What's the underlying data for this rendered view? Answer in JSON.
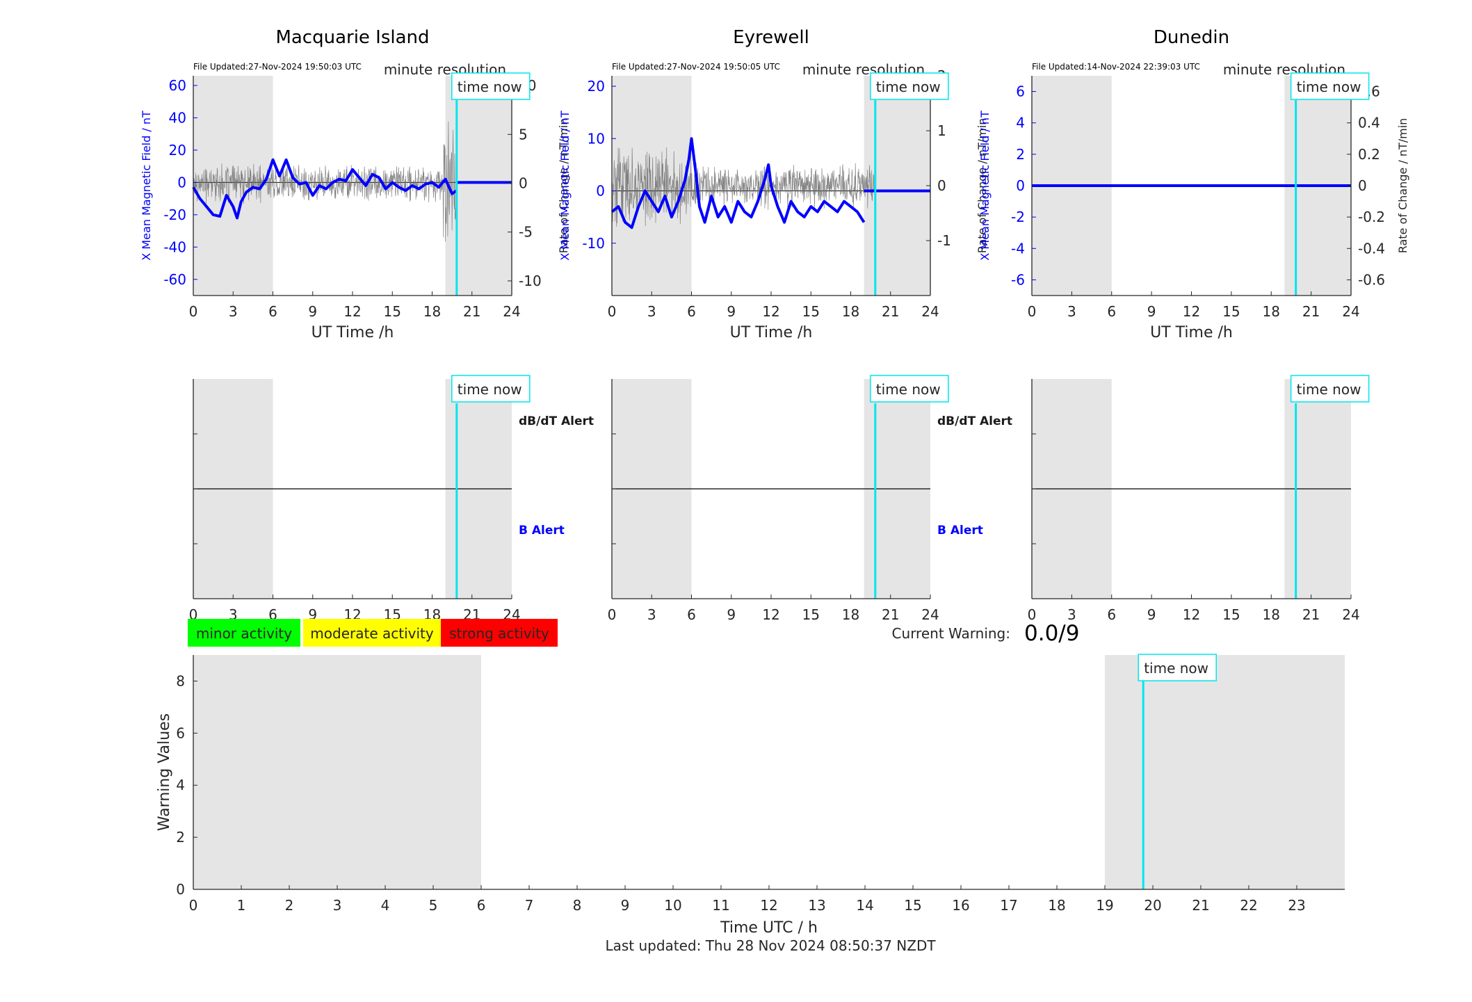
{
  "chart_data": [
    {
      "type": "line",
      "title": "Macquarie Island",
      "file_updated": "File Updated:27-Nov-2024 19:50:03 UTC",
      "resolution_label": "minute resolution",
      "time_now_label": "time now",
      "xlabel": "UT Time /h",
      "ylabel_left": "X Mean Magnetic Field / nT",
      "ylabel_right": "Rate of Change / nT/min",
      "xlim": [
        0,
        24
      ],
      "x_ticks": [
        0,
        3,
        6,
        9,
        12,
        15,
        18,
        21,
        24
      ],
      "ylim_left": [
        -70,
        66
      ],
      "y_ticks_left": [
        -60,
        -40,
        -20,
        0,
        20,
        40,
        60
      ],
      "ylim_right": [
        -11.5,
        11
      ],
      "y_ticks_right": [
        -10,
        -5,
        0,
        5,
        10
      ],
      "night_shading": [
        [
          0,
          6
        ],
        [
          19,
          24
        ]
      ],
      "time_now": 19.85,
      "series": [
        {
          "name": "X Mean Magnetic Field",
          "color": "#0000ff",
          "x": [
            0,
            0.5,
            1,
            1.5,
            2,
            2.5,
            3,
            3.3,
            3.6,
            4,
            4.5,
            5,
            5.5,
            6,
            6.5,
            7,
            7.5,
            8,
            8.5,
            9,
            9.5,
            10,
            10.5,
            11,
            11.5,
            12,
            12.5,
            13,
            13.5,
            14,
            14.5,
            15,
            15.5,
            16,
            16.5,
            17,
            17.5,
            18,
            18.5,
            19,
            19.5,
            19.85
          ],
          "y": [
            -3,
            -10,
            -15,
            -20,
            -21,
            -8,
            -15,
            -22,
            -12,
            -6,
            -3,
            -4,
            2,
            14,
            4,
            14,
            3,
            -1,
            0,
            -8,
            -2,
            -4,
            0,
            2,
            1,
            8,
            3,
            -2,
            5,
            3,
            -4,
            0,
            -3,
            -5,
            -2,
            -4,
            -1,
            0,
            -3,
            2,
            -7,
            -5
          ]
        },
        {
          "name": "Rate of Change",
          "color": "#6e6e6e",
          "type": "noise",
          "amplitude": 1.6
        }
      ]
    },
    {
      "type": "line",
      "title": "Eyrewell",
      "file_updated": "File Updated:27-Nov-2024 19:50:05 UTC",
      "resolution_label": "minute resolution",
      "time_now_label": "time now",
      "xlabel": "UT Time /h",
      "ylabel_left": "X Mean Magnetic Field / nT",
      "ylabel_right": "Rate of Change / nT/min",
      "xlim": [
        0,
        24
      ],
      "x_ticks": [
        0,
        3,
        6,
        9,
        12,
        15,
        18,
        21,
        24
      ],
      "ylim_left": [
        -20,
        22
      ],
      "y_ticks_left": [
        -10,
        0,
        10,
        20
      ],
      "ylim_right": [
        -2,
        2
      ],
      "y_ticks_right": [
        -1,
        0,
        1,
        2
      ],
      "night_shading": [
        [
          0,
          6
        ],
        [
          19,
          24
        ]
      ],
      "time_now": 19.85,
      "series": [
        {
          "name": "X Mean Magnetic Field",
          "color": "#0000ff",
          "x": [
            0,
            0.5,
            1,
            1.5,
            2,
            2.5,
            3,
            3.5,
            4,
            4.5,
            5,
            5.5,
            5.8,
            6,
            6.3,
            6.6,
            7,
            7.5,
            8,
            8.5,
            9,
            9.5,
            10,
            10.5,
            11,
            11.5,
            11.8,
            12,
            12.5,
            13,
            13.5,
            14,
            14.5,
            15,
            15.5,
            16,
            16.5,
            17,
            17.5,
            18,
            18.5,
            19
          ],
          "y": [
            -4,
            -3,
            -6,
            -7,
            -3,
            0,
            -2,
            -4,
            -1,
            -5,
            -2,
            2,
            6,
            10,
            4,
            -3,
            -6,
            -1,
            -5,
            -3,
            -6,
            -2,
            -4,
            -5,
            -2,
            2,
            5,
            1,
            -3,
            -6,
            -2,
            -4,
            -5,
            -3,
            -4,
            -2,
            -3,
            -4,
            -2,
            -3,
            -4,
            -6
          ]
        },
        {
          "name": "Rate of Change",
          "color": "#6e6e6e",
          "type": "noise",
          "amplitude": 0.35
        }
      ]
    },
    {
      "type": "line",
      "title": "Dunedin",
      "file_updated": "File Updated:14-Nov-2024 22:39:03 UTC",
      "resolution_label": "minute resolution",
      "time_now_label": "time now",
      "xlabel": "UT Time /h",
      "ylabel_left": "X Mean Magnetic Field / nT",
      "ylabel_right": "Rate of Change / nT/min",
      "xlim": [
        0,
        24
      ],
      "x_ticks": [
        0,
        3,
        6,
        9,
        12,
        15,
        18,
        21,
        24
      ],
      "ylim_left": [
        -7,
        7
      ],
      "y_ticks_left": [
        -6,
        -4,
        -2,
        0,
        2,
        4,
        6
      ],
      "ylim_right": [
        -0.7,
        0.7
      ],
      "y_ticks_right": [
        -0.6,
        -0.4,
        -0.2,
        0,
        0.2,
        0.4,
        0.6
      ],
      "night_shading": [
        [
          0,
          6
        ],
        [
          19,
          24
        ]
      ],
      "time_now": 19.85,
      "series": [
        {
          "name": "X Mean Magnetic Field",
          "color": "#0000ff",
          "x": [
            0,
            24
          ],
          "y": [
            0,
            0
          ]
        }
      ]
    }
  ],
  "alert_panels": {
    "time_now_label": "time now",
    "dbdt_label": "dB/dT Alert",
    "b_label": "B Alert",
    "x_ticks": [
      0,
      3,
      6,
      9,
      12,
      15,
      18,
      21,
      24
    ]
  },
  "legend": {
    "minor": {
      "label": "minor activity",
      "color": "#00ff00"
    },
    "moderate": {
      "label": "moderate activity",
      "color": "#ffff00"
    },
    "strong": {
      "label": "strong activity",
      "color": "#ff0000"
    }
  },
  "current_warning": {
    "label": "Current Warning:",
    "value": "0.0/9"
  },
  "warning_chart": {
    "type": "bar",
    "ylabel": "Warning Values",
    "xlabel": "Time UTC / h",
    "ylim": [
      0,
      9
    ],
    "y_ticks": [
      0,
      2,
      4,
      6,
      8
    ],
    "xlim": [
      0,
      24
    ],
    "x_ticks": [
      0,
      1,
      2,
      3,
      4,
      5,
      6,
      7,
      8,
      9,
      10,
      11,
      12,
      13,
      14,
      15,
      16,
      17,
      18,
      19,
      20,
      21,
      22,
      23
    ],
    "night_shading": [
      [
        0,
        6
      ],
      [
        19,
        24
      ]
    ],
    "time_now": 19.8,
    "time_now_label": "time now",
    "values": []
  },
  "last_updated": "Last updated: Thu 28 Nov 2024 08:50:37 NZDT",
  "colors": {
    "night": "#e5e5e5",
    "time_now": "#00e5ee",
    "series_b": "#0000ff",
    "rate": "#6e6e6e",
    "axis": "#262626"
  }
}
